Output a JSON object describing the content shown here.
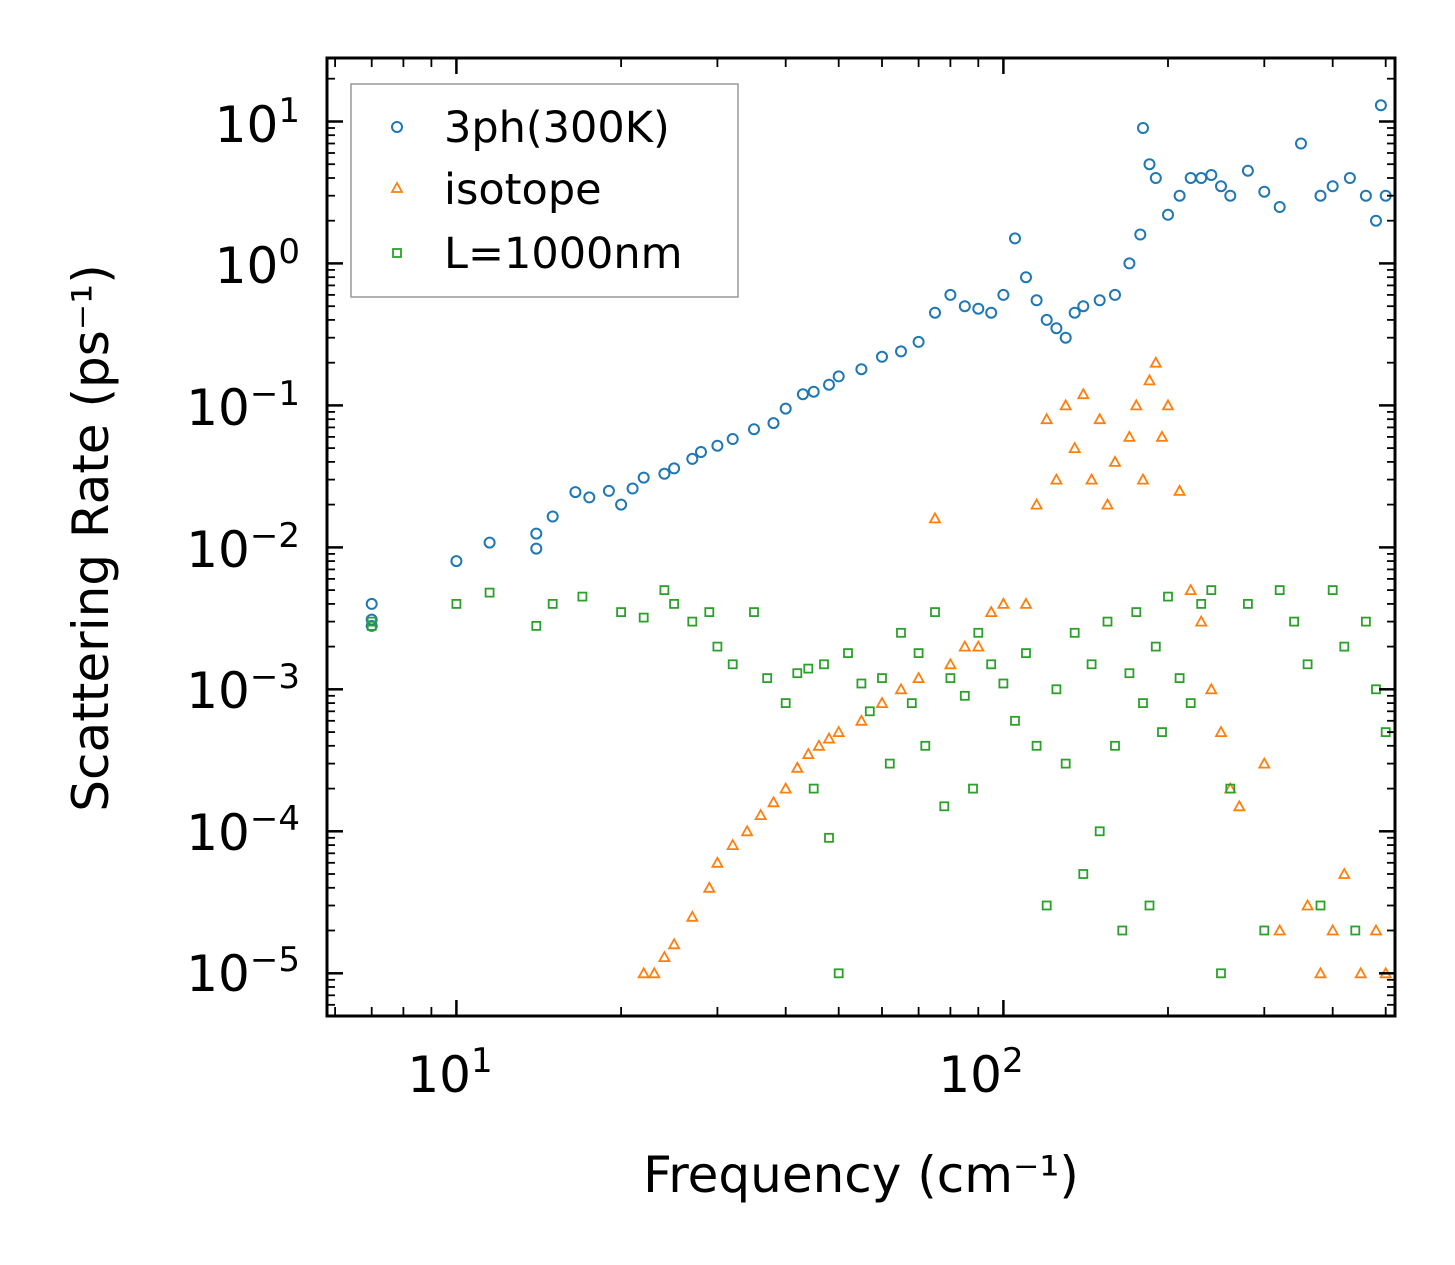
{
  "chart_data": {
    "type": "scatter",
    "title": "",
    "xlabel": "Frequency (cm⁻¹)",
    "ylabel": "Scattering Rate (ps⁻¹)",
    "xscale": "log",
    "yscale": "log",
    "xlim": [
      5.8,
      520
    ],
    "ylim": [
      5e-06,
      28
    ],
    "x_ticks": [
      {
        "base": "10",
        "exp": "1",
        "value": 10
      },
      {
        "base": "10",
        "exp": "2",
        "value": 100
      }
    ],
    "y_ticks": [
      {
        "base": "10",
        "exp": "1",
        "value": 10
      },
      {
        "base": "10",
        "exp": "0",
        "value": 1
      },
      {
        "base": "10",
        "exp": "−1",
        "value": 0.1
      },
      {
        "base": "10",
        "exp": "−2",
        "value": 0.01
      },
      {
        "base": "10",
        "exp": "−3",
        "value": 0.001
      },
      {
        "base": "10",
        "exp": "−4",
        "value": 0.0001
      },
      {
        "base": "10",
        "exp": "−5",
        "value": 1e-05
      }
    ],
    "legend_position": "top-left",
    "series": [
      {
        "name": "3ph(300K)",
        "marker": "circle",
        "color": "#1f77b4",
        "points": [
          [
            7,
            0.0028
          ],
          [
            7,
            0.0031
          ],
          [
            7,
            0.004
          ],
          [
            10,
            0.008
          ],
          [
            11.5,
            0.0108
          ],
          [
            14,
            0.0098
          ],
          [
            14,
            0.0125
          ],
          [
            15,
            0.0165
          ],
          [
            16.5,
            0.0245
          ],
          [
            17.5,
            0.0225
          ],
          [
            19,
            0.025
          ],
          [
            20,
            0.02
          ],
          [
            21,
            0.026
          ],
          [
            22,
            0.031
          ],
          [
            24,
            0.033
          ],
          [
            25,
            0.036
          ],
          [
            27,
            0.042
          ],
          [
            28,
            0.047
          ],
          [
            30,
            0.052
          ],
          [
            32,
            0.058
          ],
          [
            35,
            0.068
          ],
          [
            38,
            0.075
          ],
          [
            40,
            0.095
          ],
          [
            43,
            0.12
          ],
          [
            45,
            0.125
          ],
          [
            48,
            0.14
          ],
          [
            50,
            0.16
          ],
          [
            55,
            0.18
          ],
          [
            60,
            0.22
          ],
          [
            65,
            0.24
          ],
          [
            70,
            0.28
          ],
          [
            75,
            0.45
          ],
          [
            80,
            0.6
          ],
          [
            85,
            0.5
          ],
          [
            90,
            0.48
          ],
          [
            95,
            0.45
          ],
          [
            100,
            0.6
          ],
          [
            105,
            1.5
          ],
          [
            110,
            0.8
          ],
          [
            115,
            0.55
          ],
          [
            120,
            0.4
          ],
          [
            125,
            0.35
          ],
          [
            130,
            0.3
          ],
          [
            135,
            0.45
          ],
          [
            140,
            0.5
          ],
          [
            150,
            0.55
          ],
          [
            160,
            0.6
          ],
          [
            170,
            1
          ],
          [
            178,
            1.6
          ],
          [
            180,
            9
          ],
          [
            185,
            5
          ],
          [
            190,
            4
          ],
          [
            200,
            2.2
          ],
          [
            210,
            3
          ],
          [
            220,
            4
          ],
          [
            230,
            4
          ],
          [
            240,
            4.2
          ],
          [
            250,
            3.5
          ],
          [
            260,
            3
          ],
          [
            280,
            4.5
          ],
          [
            300,
            3.2
          ],
          [
            320,
            2.5
          ],
          [
            350,
            7
          ],
          [
            380,
            3
          ],
          [
            400,
            3.5
          ],
          [
            430,
            4
          ],
          [
            460,
            3
          ],
          [
            480,
            2
          ],
          [
            490,
            13
          ],
          [
            500,
            3
          ]
        ]
      },
      {
        "name": "isotope",
        "marker": "triangle",
        "color": "#ff7f0e",
        "points": [
          [
            22,
            1e-05
          ],
          [
            23,
            1e-05
          ],
          [
            24,
            1.3e-05
          ],
          [
            25,
            1.6e-05
          ],
          [
            27,
            2.5e-05
          ],
          [
            29,
            4e-05
          ],
          [
            30,
            6e-05
          ],
          [
            32,
            8e-05
          ],
          [
            34,
            0.0001
          ],
          [
            36,
            0.00013
          ],
          [
            38,
            0.00016
          ],
          [
            40,
            0.0002
          ],
          [
            42,
            0.00028
          ],
          [
            44,
            0.00035
          ],
          [
            46,
            0.0004
          ],
          [
            48,
            0.00045
          ],
          [
            50,
            0.0005
          ],
          [
            55,
            0.0006
          ],
          [
            60,
            0.0008
          ],
          [
            65,
            0.001
          ],
          [
            70,
            0.0012
          ],
          [
            75,
            0.016
          ],
          [
            80,
            0.0015
          ],
          [
            85,
            0.002
          ],
          [
            90,
            0.002
          ],
          [
            95,
            0.0035
          ],
          [
            100,
            0.004
          ],
          [
            110,
            0.004
          ],
          [
            115,
            0.02
          ],
          [
            120,
            0.08
          ],
          [
            125,
            0.03
          ],
          [
            130,
            0.1
          ],
          [
            135,
            0.05
          ],
          [
            140,
            0.12
          ],
          [
            145,
            0.03
          ],
          [
            150,
            0.08
          ],
          [
            155,
            0.02
          ],
          [
            160,
            0.04
          ],
          [
            170,
            0.06
          ],
          [
            175,
            0.1
          ],
          [
            180,
            0.03
          ],
          [
            185,
            0.15
          ],
          [
            190,
            0.2
          ],
          [
            195,
            0.06
          ],
          [
            200,
            0.1
          ],
          [
            210,
            0.025
          ],
          [
            220,
            0.005
          ],
          [
            230,
            0.003
          ],
          [
            240,
            0.001
          ],
          [
            250,
            0.0005
          ],
          [
            260,
            0.0002
          ],
          [
            270,
            0.00015
          ],
          [
            300,
            0.0003
          ],
          [
            320,
            2e-05
          ],
          [
            360,
            3e-05
          ],
          [
            380,
            1e-05
          ],
          [
            400,
            2e-05
          ],
          [
            420,
            5e-05
          ],
          [
            450,
            1e-05
          ],
          [
            480,
            2e-05
          ],
          [
            500,
            1e-05
          ]
        ]
      },
      {
        "name": "L=1000nm",
        "marker": "square",
        "color": "#2ca02c",
        "points": [
          [
            7,
            0.003
          ],
          [
            7,
            0.0028
          ],
          [
            10,
            0.004
          ],
          [
            11.5,
            0.0048
          ],
          [
            14,
            0.0028
          ],
          [
            15,
            0.004
          ],
          [
            17,
            0.0045
          ],
          [
            20,
            0.0035
          ],
          [
            22,
            0.0032
          ],
          [
            24,
            0.005
          ],
          [
            25,
            0.004
          ],
          [
            27,
            0.003
          ],
          [
            29,
            0.0035
          ],
          [
            30,
            0.002
          ],
          [
            32,
            0.0015
          ],
          [
            35,
            0.0035
          ],
          [
            37,
            0.0012
          ],
          [
            40,
            0.0008
          ],
          [
            42,
            0.0013
          ],
          [
            44,
            0.0014
          ],
          [
            45,
            0.0002
          ],
          [
            47,
            0.0015
          ],
          [
            48,
            9e-05
          ],
          [
            50,
            1e-05
          ],
          [
            52,
            0.0018
          ],
          [
            55,
            0.0011
          ],
          [
            57,
            0.0007
          ],
          [
            60,
            0.0012
          ],
          [
            62,
            0.0003
          ],
          [
            65,
            0.0025
          ],
          [
            68,
            0.0008
          ],
          [
            70,
            0.0018
          ],
          [
            72,
            0.0004
          ],
          [
            75,
            0.0035
          ],
          [
            78,
            0.00015
          ],
          [
            80,
            0.0012
          ],
          [
            85,
            0.0009
          ],
          [
            88,
            0.0002
          ],
          [
            90,
            0.0025
          ],
          [
            95,
            0.0015
          ],
          [
            100,
            0.0011
          ],
          [
            105,
            0.0006
          ],
          [
            110,
            0.0018
          ],
          [
            115,
            0.0004
          ],
          [
            120,
            3e-05
          ],
          [
            125,
            0.001
          ],
          [
            130,
            0.0003
          ],
          [
            135,
            0.0025
          ],
          [
            140,
            5e-05
          ],
          [
            145,
            0.0015
          ],
          [
            150,
            0.0001
          ],
          [
            155,
            0.003
          ],
          [
            160,
            0.0004
          ],
          [
            165,
            2e-05
          ],
          [
            170,
            0.0013
          ],
          [
            175,
            0.0035
          ],
          [
            180,
            0.0008
          ],
          [
            185,
            3e-05
          ],
          [
            190,
            0.002
          ],
          [
            195,
            0.0005
          ],
          [
            200,
            0.0045
          ],
          [
            210,
            0.0012
          ],
          [
            220,
            0.0008
          ],
          [
            230,
            0.004
          ],
          [
            240,
            0.005
          ],
          [
            250,
            1e-05
          ],
          [
            260,
            0.0002
          ],
          [
            280,
            0.004
          ],
          [
            300,
            2e-05
          ],
          [
            320,
            0.005
          ],
          [
            340,
            0.003
          ],
          [
            360,
            0.0015
          ],
          [
            380,
            3e-05
          ],
          [
            400,
            0.005
          ],
          [
            420,
            0.002
          ],
          [
            440,
            2e-05
          ],
          [
            460,
            0.003
          ],
          [
            480,
            0.001
          ],
          [
            500,
            0.0005
          ]
        ]
      }
    ]
  }
}
